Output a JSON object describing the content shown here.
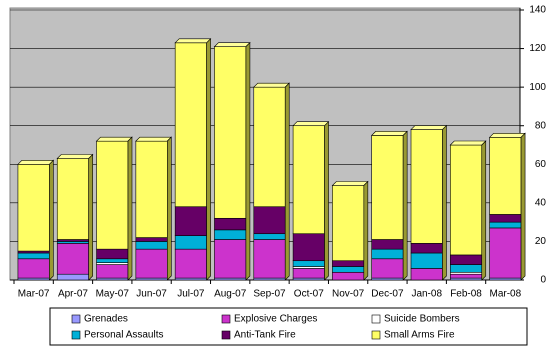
{
  "chart_data": {
    "type": "bar",
    "stacked": true,
    "grid": true,
    "y_axis_side": "right",
    "legend": "bottom",
    "categories": [
      "Mar-07",
      "Apr-07",
      "May-07",
      "Jun-07",
      "Jul-07",
      "Aug-07",
      "Sep-07",
      "Oct-07",
      "Nov-07",
      "Dec-07",
      "Jan-08",
      "Feb-08",
      "Mar-08"
    ],
    "series": [
      {
        "name": "Grenades",
        "color": "#9999ff",
        "values": [
          1,
          3,
          1,
          1,
          1,
          1,
          1,
          1,
          0,
          1,
          0,
          1,
          1
        ]
      },
      {
        "name": "Explosive Charges",
        "color": "#cc33cc",
        "values": [
          10,
          16,
          7,
          15,
          15,
          20,
          20,
          5,
          4,
          10,
          6,
          2,
          26
        ]
      },
      {
        "name": "Suicide Bombers",
        "color": "#ffffff",
        "values": [
          0,
          0,
          1,
          0,
          0,
          0,
          0,
          1,
          0,
          0,
          0,
          1,
          0
        ]
      },
      {
        "name": "Personal Assaults",
        "color": "#00b0d8",
        "values": [
          3,
          1,
          2,
          4,
          7,
          5,
          3,
          3,
          3,
          5,
          8,
          4,
          3
        ]
      },
      {
        "name": "Anti-Tank Fire",
        "color": "#660066",
        "values": [
          1,
          1,
          5,
          2,
          15,
          6,
          14,
          14,
          3,
          5,
          5,
          5,
          4
        ]
      },
      {
        "name": "Small Arms Fire",
        "color": "#ffff66",
        "values": [
          45,
          42,
          56,
          50,
          85,
          89,
          62,
          56,
          39,
          54,
          59,
          57,
          40
        ]
      }
    ],
    "ylim": [
      0,
      140
    ],
    "yticks": [
      0,
      20,
      40,
      60,
      80,
      100,
      120,
      140
    ]
  }
}
